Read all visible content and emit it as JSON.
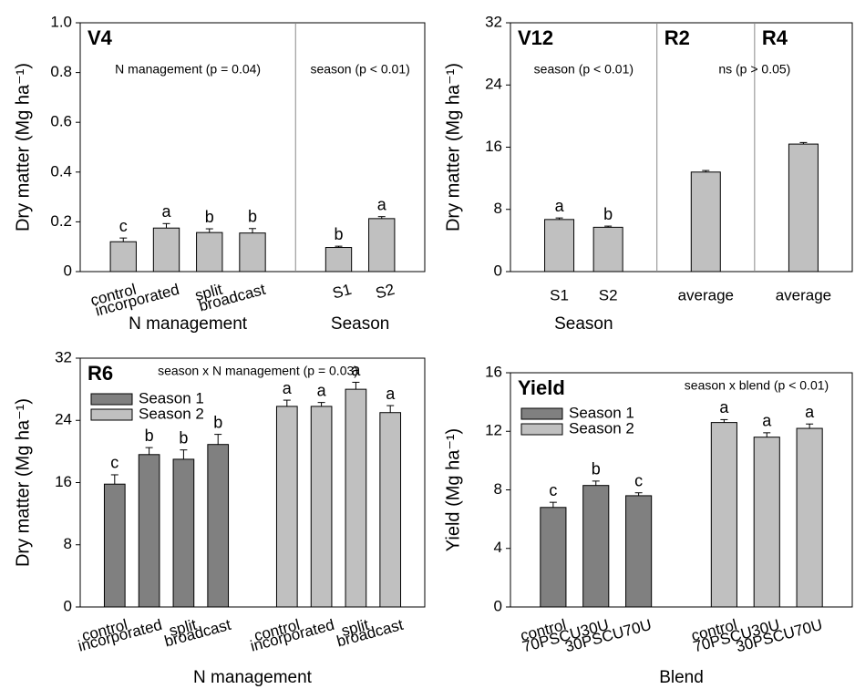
{
  "chart_data": [
    {
      "type": "bar",
      "ylabel": "Dry matter (Mg ha⁻¹)",
      "ylim": [
        0,
        1
      ],
      "yticks": [
        0,
        0.2,
        0.4,
        0.6,
        0.8,
        {
          "value": 1,
          "label": "1.0"
        }
      ],
      "dividers": true,
      "sections": [
        {
          "label": "V4",
          "annotation": "N management (p = 0.04)",
          "xlabel": "N management",
          "color": "#c0c0c0",
          "categories": [
            "control",
            "incorporated",
            "split",
            "broadcast"
          ],
          "values": [
            0.12,
            0.175,
            0.157,
            0.155
          ],
          "errors": [
            0.015,
            0.018,
            0.015,
            0.018
          ],
          "letters": [
            "c",
            "a",
            "b",
            "b"
          ]
        },
        {
          "annotation": "season (p < 0.01)",
          "xlabel": "Season",
          "color": "#c0c0c0",
          "categories": [
            "S1",
            "S2"
          ],
          "values": [
            0.097,
            0.213
          ],
          "errors": [
            0.005,
            0.008
          ],
          "letters": [
            "b",
            "a"
          ]
        }
      ]
    },
    {
      "type": "bar",
      "ylabel": "Dry matter (Mg ha⁻¹)",
      "ylim": [
        0,
        32
      ],
      "yticks": [
        0,
        8,
        16,
        24,
        32
      ],
      "dividers": true,
      "sections": [
        {
          "label": "V12",
          "annotation": "season (p < 0.01)",
          "xlabel": "Season",
          "color": "#c0c0c0",
          "categories": [
            "S1",
            "S2"
          ],
          "values": [
            6.7,
            5.7
          ],
          "errors": [
            0.2,
            0.15
          ],
          "letters": [
            "a",
            "b"
          ]
        },
        {
          "label": "R2",
          "annotation": "ns (p > 0.05)",
          "color": "#c0c0c0",
          "categories": [
            "average"
          ],
          "values": [
            12.8
          ],
          "errors": [
            0.2
          ]
        },
        {
          "label": "R4",
          "color": "#c0c0c0",
          "categories": [
            "average"
          ],
          "values": [
            16.4
          ],
          "errors": [
            0.2
          ]
        }
      ]
    },
    {
      "type": "bar",
      "label": "R6",
      "annotation": "season x N management (p = 0.03)",
      "xlabel": "N management",
      "ylabel": "Dry matter (Mg ha⁻¹)",
      "ylim": [
        0,
        32
      ],
      "yticks": [
        0,
        8,
        16,
        24,
        32
      ],
      "legend": "upper left",
      "sections": [
        {
          "name": "Season 1",
          "color": "#808080",
          "categories": [
            "control",
            "incorporated",
            "split",
            "broadcast"
          ],
          "values": [
            15.8,
            19.6,
            19.0,
            20.9
          ],
          "errors": [
            1.2,
            0.9,
            1.2,
            1.3
          ],
          "letters": [
            "c",
            "b",
            "b",
            "b"
          ]
        },
        {
          "name": "Season 2",
          "color": "#c0c0c0",
          "categories": [
            "control",
            "incorporated",
            "split",
            "broadcast"
          ],
          "values": [
            25.8,
            25.8,
            28.0,
            25.0
          ],
          "errors": [
            0.8,
            0.5,
            0.9,
            0.9
          ],
          "letters": [
            "a",
            "a",
            "a",
            "a"
          ]
        }
      ]
    },
    {
      "type": "bar",
      "label": "Yield",
      "annotation": "season x blend (p < 0.01)",
      "xlabel": "Blend",
      "ylabel": "Yield (Mg ha⁻¹)",
      "ylim": [
        0,
        16
      ],
      "yticks": [
        0,
        4,
        8,
        12,
        16
      ],
      "legend": "upper left",
      "sections": [
        {
          "name": "Season 1",
          "color": "#808080",
          "categories": [
            "control",
            "70PSCU30U",
            "30PSCU70U"
          ],
          "values": [
            6.8,
            8.3,
            7.6
          ],
          "errors": [
            0.35,
            0.3,
            0.2
          ],
          "letters": [
            "c",
            "b",
            "c"
          ]
        },
        {
          "name": "Season 2",
          "color": "#c0c0c0",
          "categories": [
            "control",
            "70PSCU30U",
            "30PSCU70U"
          ],
          "values": [
            12.6,
            11.6,
            12.2
          ],
          "errors": [
            0.2,
            0.3,
            0.3
          ],
          "letters": [
            "a",
            "a",
            "a"
          ]
        }
      ]
    }
  ]
}
